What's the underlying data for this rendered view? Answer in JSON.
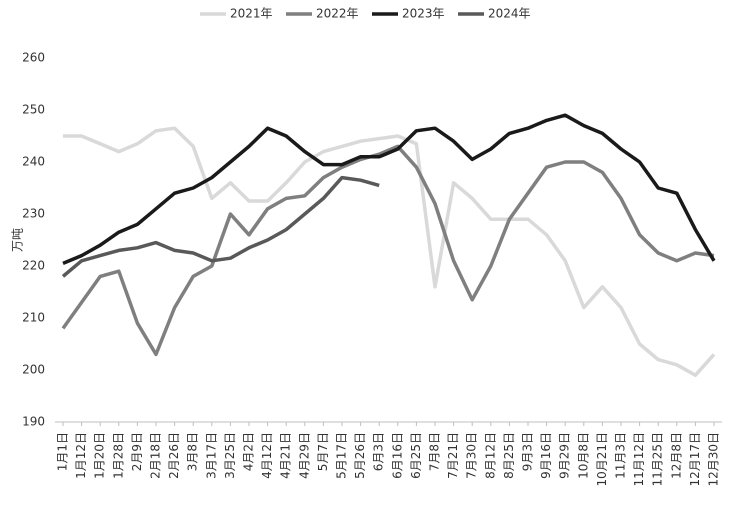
{
  "chart_data": {
    "type": "line",
    "y_label": "万吨",
    "categories": [
      "1月1日",
      "1月12日",
      "1月20日",
      "1月28日",
      "2月9日",
      "2月18日",
      "2月26日",
      "3月8日",
      "3月17日",
      "3月25日",
      "4月2日",
      "4月12日",
      "4月21日",
      "4月29日",
      "5月7日",
      "5月17日",
      "5月26日",
      "6月3日",
      "6月16日",
      "6月25日",
      "7月8日",
      "7月21日",
      "7月30日",
      "8月12日",
      "8月25日",
      "9月3日",
      "9月16日",
      "9月29日",
      "10月8日",
      "10月21日",
      "11月3日",
      "11月12日",
      "11月25日",
      "12月8日",
      "12月17日",
      "12月30日"
    ],
    "series": [
      {
        "name": "2021年",
        "color": "#d9d9d9",
        "values": [
          245,
          245,
          243.5,
          242,
          243.5,
          246,
          246.5,
          243,
          233,
          236,
          232.5,
          232.5,
          236,
          240,
          242,
          243,
          244,
          244.5,
          245,
          243.5,
          216,
          236,
          233,
          229,
          229,
          229,
          226,
          221,
          212,
          216,
          212,
          205,
          202,
          201,
          199,
          203
        ]
      },
      {
        "name": "2022年",
        "color": "#7f7f7f",
        "values": [
          208,
          213,
          218,
          219,
          209,
          203,
          212,
          218,
          220,
          230,
          226,
          231,
          233,
          233.5,
          237,
          239,
          240.5,
          241.5,
          243,
          239,
          232,
          221,
          213.5,
          220,
          229,
          234,
          239,
          240,
          240,
          238,
          233,
          226,
          222.5,
          221,
          222.5,
          222
        ]
      },
      {
        "name": "2023年",
        "color": "#1a1a1a",
        "values": [
          220.5,
          222,
          224,
          226.5,
          228,
          231,
          234,
          235,
          237,
          240,
          243,
          246.5,
          245,
          242,
          239.5,
          239.5,
          241,
          241,
          242.5,
          246,
          246.5,
          244,
          240.5,
          242.5,
          245.5,
          246.5,
          248,
          249,
          247,
          245.5,
          242.5,
          240,
          235,
          234,
          227,
          221
        ]
      },
      {
        "name": "2024年",
        "color": "#595959",
        "values": [
          218,
          221,
          222,
          223,
          223.5,
          224.5,
          223,
          222.5,
          221,
          221.5,
          223.5,
          225,
          227,
          230,
          233,
          237,
          236.5,
          235.5,
          null,
          null,
          null,
          null,
          null,
          null,
          null,
          null,
          null,
          null,
          null,
          null,
          null,
          null,
          null,
          null,
          null,
          null
        ]
      }
    ],
    "ylim": [
      190,
      260
    ],
    "yticks": [
      190,
      200,
      210,
      220,
      230,
      240,
      250,
      260
    ],
    "legend": "top"
  }
}
